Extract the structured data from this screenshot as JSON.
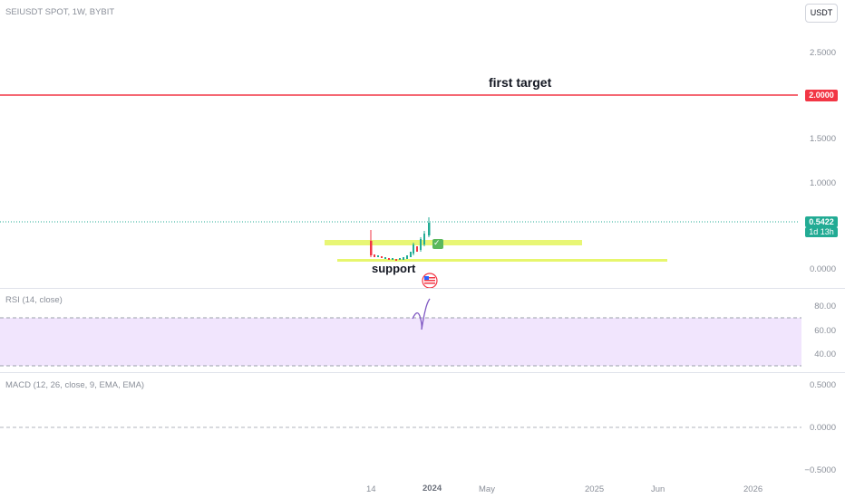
{
  "header": {
    "symbol": "SEIUSDT SPOT, 1W, BYBIT",
    "currency_button": "USDT"
  },
  "price_axis": {
    "ticks": [
      "2.5000",
      "1.5000",
      "1.0000",
      "0.0000"
    ]
  },
  "markers": {
    "target_price": "2.0000",
    "last_price": "0.5422",
    "countdown": "1d 13h"
  },
  "annotations": {
    "target_text": "first target",
    "support_text": "support",
    "check_glyph": "✓"
  },
  "rsi": {
    "title": "RSI (14, close)",
    "ticks": [
      "80.00",
      "60.00",
      "40.00"
    ]
  },
  "macd": {
    "title": "MACD (12, 26, close, 9, EMA, EMA)",
    "ticks": [
      "0.5000",
      "0.0000",
      "−0.5000"
    ]
  },
  "time_axis": {
    "labels": [
      "14",
      "2024",
      "May",
      "2025",
      "Jun",
      "2026"
    ]
  },
  "colors": {
    "target_line": "#f23645",
    "last_price_badge": "#22ab94",
    "up_candle": "#22ab94",
    "down_candle": "#f23645",
    "support_zone": "#e4f55d",
    "rsi_band": "#f1e5fd",
    "rsi_line": "#7e57c2"
  }
}
